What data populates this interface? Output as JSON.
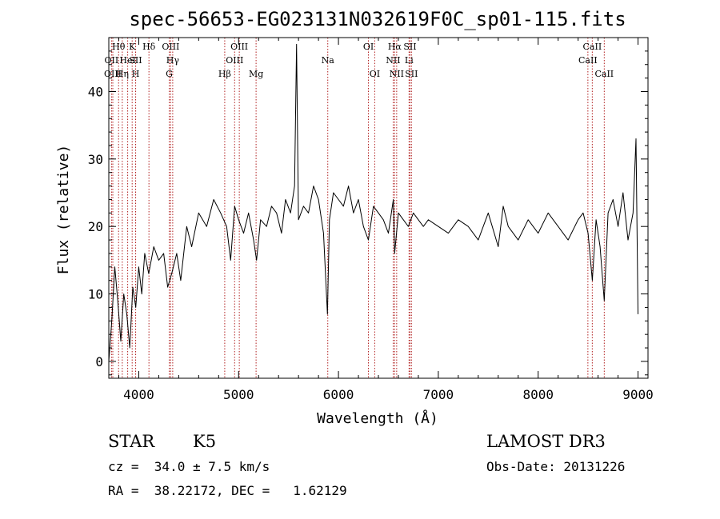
{
  "chart_data": {
    "type": "line",
    "title": "spec-56653-EG023131N032619F0C_sp01-115.fits",
    "xlabel": "Wavelength (Å)",
    "ylabel": "Flux (relative)",
    "xlim": [
      3700,
      9100
    ],
    "ylim": [
      -2.5,
      48
    ],
    "xticks": [
      4000,
      5000,
      6000,
      7000,
      8000,
      9000
    ],
    "yticks": [
      0,
      10,
      20,
      30,
      40
    ],
    "grid": false,
    "series": [
      {
        "name": "spectrum",
        "x": [
          3700,
          3730,
          3760,
          3790,
          3820,
          3850,
          3880,
          3910,
          3940,
          3970,
          4000,
          4030,
          4060,
          4100,
          4150,
          4200,
          4250,
          4290,
          4330,
          4380,
          4420,
          4480,
          4530,
          4600,
          4680,
          4750,
          4820,
          4880,
          4920,
          4960,
          5000,
          5050,
          5100,
          5150,
          5180,
          5220,
          5280,
          5330,
          5380,
          5430,
          5470,
          5520,
          5560,
          5580,
          5600,
          5650,
          5700,
          5750,
          5800,
          5850,
          5890,
          5910,
          5950,
          6000,
          6050,
          6100,
          6150,
          6200,
          6250,
          6300,
          6350,
          6400,
          6450,
          6500,
          6550,
          6563,
          6600,
          6650,
          6700,
          6750,
          6800,
          6850,
          6900,
          7000,
          7100,
          7200,
          7300,
          7400,
          7500,
          7600,
          7650,
          7700,
          7800,
          7900,
          8000,
          8100,
          8200,
          8300,
          8400,
          8450,
          8500,
          8542,
          8580,
          8620,
          8662,
          8700,
          8750,
          8800,
          8850,
          8900,
          8950,
          8980,
          9000
        ],
        "values": [
          0,
          6,
          14,
          9,
          3,
          10,
          7,
          2,
          11,
          8,
          14,
          10,
          16,
          13,
          17,
          15,
          16,
          11,
          13,
          16,
          12,
          20,
          17,
          22,
          20,
          24,
          22,
          20,
          15,
          23,
          21,
          19,
          22,
          18,
          15,
          21,
          20,
          23,
          22,
          19,
          24,
          22,
          26,
          47,
          21,
          23,
          22,
          26,
          24,
          19,
          7,
          21,
          25,
          24,
          23,
          26,
          22,
          24,
          20,
          18,
          23,
          22,
          21,
          19,
          24,
          16,
          22,
          21,
          20,
          22,
          21,
          20,
          21,
          20,
          19,
          21,
          20,
          18,
          22,
          17,
          23,
          20,
          18,
          21,
          19,
          22,
          20,
          18,
          21,
          22,
          19,
          12,
          21,
          17,
          9,
          22,
          24,
          20,
          25,
          18,
          22,
          33,
          7
        ]
      }
    ],
    "lines": [
      {
        "label": "Hθ",
        "x": 3798,
        "row": 1
      },
      {
        "label": "OII",
        "x": 3727,
        "row": 2
      },
      {
        "label": "OIII",
        "x": 3740,
        "row": 3
      },
      {
        "label": "Hη",
        "x": 3835,
        "row": 3
      },
      {
        "label": "HeI",
        "x": 3889,
        "row": 2
      },
      {
        "label": "K",
        "x": 3934,
        "row": 1
      },
      {
        "label": "SII",
        "x": 3968,
        "row": 2
      },
      {
        "label": "H",
        "x": 3969,
        "row": 3
      },
      {
        "label": "Hδ",
        "x": 4102,
        "row": 1
      },
      {
        "label": "OIII",
        "x": 4320,
        "row": 1
      },
      {
        "label": "Hγ",
        "x": 4340,
        "row": 2
      },
      {
        "label": "G",
        "x": 4305,
        "row": 3
      },
      {
        "label": "Hβ",
        "x": 4861,
        "row": 3
      },
      {
        "label": "OIII",
        "x": 5007,
        "row": 1
      },
      {
        "label": "OIII",
        "x": 4960,
        "row": 2
      },
      {
        "label": "Mg",
        "x": 5175,
        "row": 3
      },
      {
        "label": "Na",
        "x": 5893,
        "row": 2
      },
      {
        "label": "OI",
        "x": 6300,
        "row": 1
      },
      {
        "label": "OI",
        "x": 6363,
        "row": 3
      },
      {
        "label": "Hα",
        "x": 6563,
        "row": 1
      },
      {
        "label": "SII",
        "x": 6716,
        "row": 1
      },
      {
        "label": "NII",
        "x": 6548,
        "row": 2
      },
      {
        "label": "Li",
        "x": 6707,
        "row": 2
      },
      {
        "label": "NII",
        "x": 6583,
        "row": 3
      },
      {
        "label": "SII",
        "x": 6731,
        "row": 3
      },
      {
        "label": "CaII",
        "x": 8542,
        "row": 1
      },
      {
        "label": "CaII",
        "x": 8498,
        "row": 2
      },
      {
        "label": "CaII",
        "x": 8662,
        "row": 3
      }
    ]
  },
  "info": {
    "object_class": "STAR",
    "subclass": "K5",
    "redshift": "cz =  34.0 ± 7.5 km/s",
    "coords": "RA =  38.22172, DEC =   1.62129",
    "survey": "LAMOST DR3",
    "obs_date": "Obs-Date: 20131226"
  },
  "colors": {
    "spectrum": "#000000",
    "line_marker": "#b22222",
    "frame": "#000000"
  }
}
